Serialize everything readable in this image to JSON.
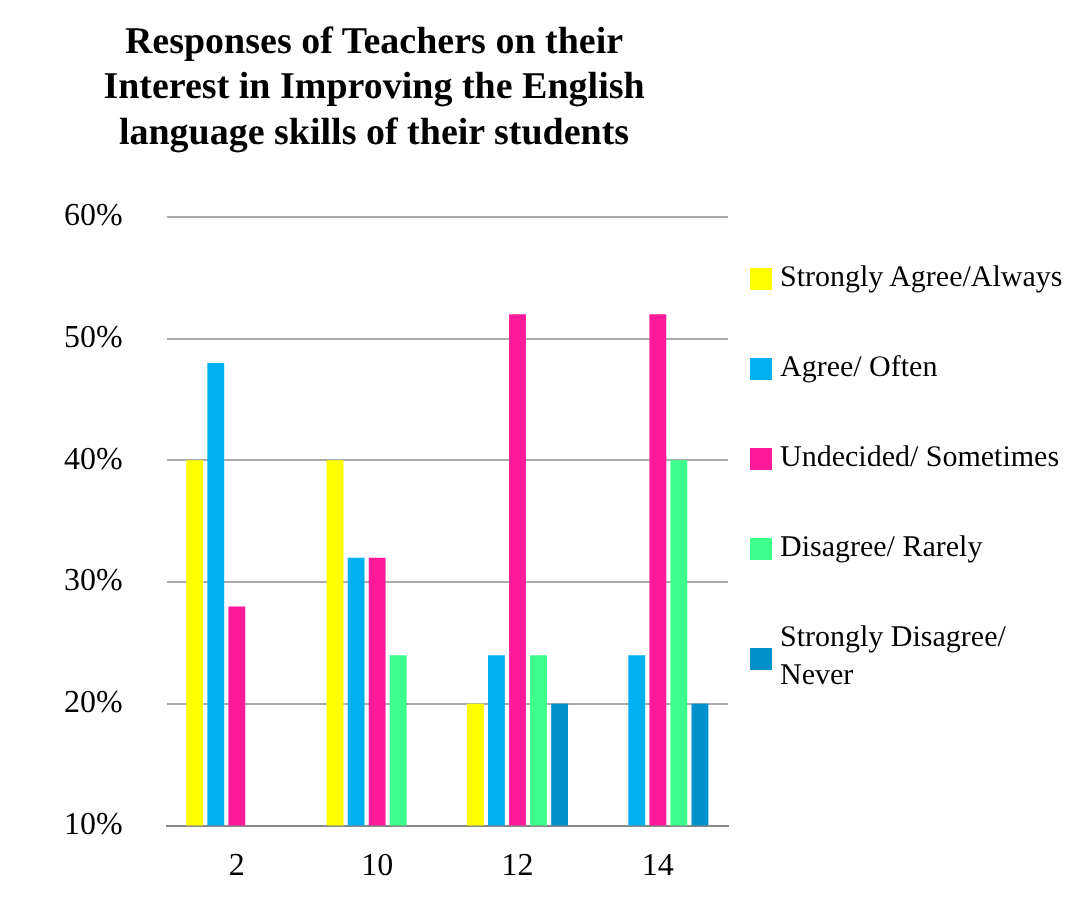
{
  "chart_data": {
    "type": "bar",
    "title": "Responses of Teachers on their Interest in Improving the English language skills of their students",
    "categories": [
      "2",
      "10",
      "12",
      "14"
    ],
    "series": [
      {
        "name": "Strongly Agree/Always",
        "color": "#ffff00",
        "values": [
          40,
          40,
          20,
          null
        ]
      },
      {
        "name": "Agree/ Often",
        "color": "#00b0f0",
        "values": [
          48,
          32,
          24,
          24
        ]
      },
      {
        "name": "Undecided/ Sometimes",
        "color": "#ff1a9a",
        "values": [
          28,
          32,
          52,
          52
        ]
      },
      {
        "name": "Disagree/ Rarely",
        "color": "#3cff8c",
        "values": [
          null,
          24,
          24,
          40
        ]
      },
      {
        "name": "Strongly Disagree/ Never",
        "color": "#0090cc",
        "values": [
          null,
          null,
          20,
          20
        ]
      }
    ],
    "ylim": [
      10,
      60
    ],
    "yticks": [
      {
        "value": 10,
        "label": "10%"
      },
      {
        "value": 20,
        "label": "20%"
      },
      {
        "value": 30,
        "label": "30%"
      },
      {
        "value": 40,
        "label": "40%"
      },
      {
        "value": 50,
        "label": "50%"
      },
      {
        "value": 60,
        "label": "60%"
      }
    ],
    "grid": "y",
    "legend": "right"
  }
}
